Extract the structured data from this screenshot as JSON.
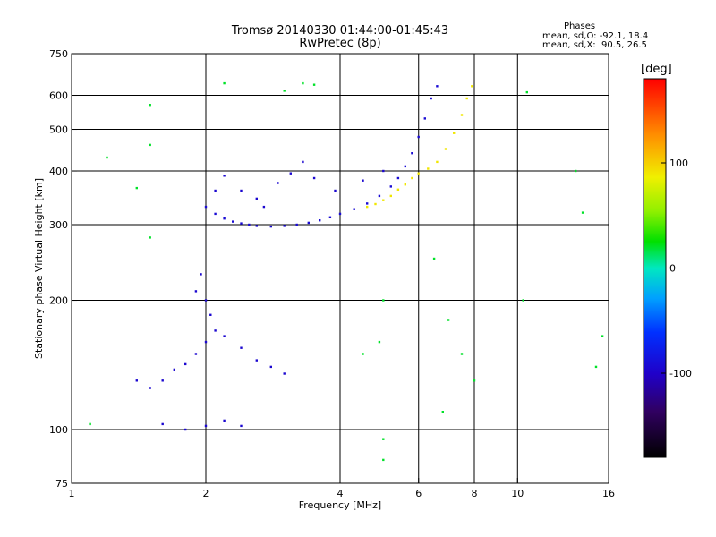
{
  "chart_data": {
    "type": "scatter",
    "title": "Tromsø 20140330 01:44:00-01:45:43",
    "subtitle": "RwPretec (8p)",
    "xlabel": "Frequency [MHz]",
    "ylabel": "Stationary phase Virtual Height [km]",
    "x_scale": "log2",
    "y_scale": "log",
    "xlim": [
      1,
      16
    ],
    "ylim": [
      75,
      750
    ],
    "x_ticks": [
      "1",
      "2",
      "4",
      "6",
      "8",
      "10",
      "16"
    ],
    "x_tick_values": [
      1,
      2,
      4,
      6,
      8,
      10,
      16
    ],
    "y_ticks": [
      "750",
      "600",
      "500",
      "400",
      "300",
      "200",
      "100",
      "75"
    ],
    "y_tick_values": [
      750,
      600,
      500,
      400,
      300,
      200,
      100,
      75
    ],
    "x_gridlines": [
      2,
      4,
      6,
      8,
      10
    ],
    "y_gridlines": [
      600,
      500,
      400,
      300,
      200,
      100
    ],
    "grid": true,
    "color_variable": "Phase",
    "colorbar": {
      "label": "[deg]",
      "range": [
        -180,
        180
      ],
      "ticks": [
        "100",
        "0",
        "-100"
      ],
      "tick_values": [
        100,
        0,
        -100
      ]
    },
    "stats": {
      "header": "Phases",
      "o_mode": "mean, sd,O: -92.1, 18.4",
      "x_mode": "mean, sd,X:  90.5, 26.5"
    },
    "series": [
      {
        "feature": "F-layer o-mode trace",
        "phase_mean": -92,
        "points": [
          [
            2.0,
            330
          ],
          [
            2.1,
            318
          ],
          [
            2.2,
            310
          ],
          [
            2.3,
            305
          ],
          [
            2.4,
            302
          ],
          [
            2.5,
            300
          ],
          [
            2.6,
            298
          ],
          [
            2.8,
            297
          ],
          [
            3.0,
            298
          ],
          [
            3.2,
            300
          ],
          [
            3.4,
            303
          ],
          [
            3.6,
            307
          ],
          [
            3.8,
            312
          ],
          [
            4.0,
            318
          ],
          [
            4.3,
            326
          ],
          [
            4.6,
            336
          ],
          [
            4.9,
            350
          ],
          [
            5.2,
            368
          ],
          [
            5.4,
            385
          ],
          [
            5.6,
            410
          ],
          [
            5.8,
            440
          ],
          [
            6.0,
            480
          ],
          [
            6.2,
            530
          ],
          [
            6.4,
            590
          ],
          [
            6.6,
            630
          ]
        ]
      },
      {
        "feature": "F-layer diffuse spread",
        "phase_mean": -95,
        "points": [
          [
            2.2,
            390
          ],
          [
            2.4,
            360
          ],
          [
            2.6,
            345
          ],
          [
            2.9,
            375
          ],
          [
            3.1,
            395
          ],
          [
            3.3,
            420
          ],
          [
            3.5,
            385
          ],
          [
            2.1,
            360
          ],
          [
            2.7,
            330
          ],
          [
            3.9,
            360
          ],
          [
            4.5,
            380
          ],
          [
            5.0,
            400
          ]
        ]
      },
      {
        "feature": "F-layer x-mode trace",
        "phase_mean": 90,
        "points": [
          [
            4.6,
            330
          ],
          [
            4.8,
            335
          ],
          [
            5.0,
            342
          ],
          [
            5.2,
            350
          ],
          [
            5.4,
            362
          ],
          [
            5.6,
            372
          ],
          [
            5.8,
            385
          ],
          [
            6.0,
            395
          ],
          [
            6.3,
            405
          ],
          [
            6.6,
            420
          ],
          [
            6.9,
            450
          ],
          [
            7.2,
            490
          ],
          [
            7.5,
            540
          ],
          [
            7.7,
            590
          ],
          [
            7.9,
            630
          ]
        ]
      },
      {
        "feature": "Lower-height spread",
        "phase_mean": -95,
        "points": [
          [
            1.4,
            130
          ],
          [
            1.5,
            125
          ],
          [
            1.6,
            130
          ],
          [
            1.7,
            138
          ],
          [
            1.8,
            142
          ],
          [
            1.9,
            150
          ],
          [
            2.0,
            160
          ],
          [
            2.1,
            170
          ],
          [
            2.2,
            165
          ],
          [
            2.4,
            155
          ],
          [
            2.6,
            145
          ],
          [
            2.8,
            140
          ],
          [
            3.0,
            135
          ],
          [
            1.95,
            230
          ],
          [
            2.0,
            200
          ],
          [
            1.9,
            210
          ],
          [
            2.05,
            185
          ],
          [
            1.6,
            103
          ],
          [
            1.8,
            100
          ],
          [
            2.0,
            102
          ],
          [
            2.2,
            105
          ],
          [
            2.4,
            102
          ]
        ]
      },
      {
        "feature": "Isolated echoes",
        "phase_mean": 20,
        "points": [
          [
            3.0,
            615
          ],
          [
            3.3,
            640
          ],
          [
            3.5,
            635
          ],
          [
            1.5,
            570
          ],
          [
            1.5,
            460
          ],
          [
            1.2,
            430
          ],
          [
            1.4,
            365
          ],
          [
            2.2,
            640
          ],
          [
            5.0,
            200
          ],
          [
            5.0,
            95
          ],
          [
            5.0,
            85
          ],
          [
            6.8,
            110
          ],
          [
            7.5,
            150
          ],
          [
            8.0,
            130
          ],
          [
            10.3,
            200
          ],
          [
            10.5,
            610
          ],
          [
            13.5,
            400
          ],
          [
            14.0,
            320
          ],
          [
            15.5,
            165
          ],
          [
            15.0,
            140
          ],
          [
            1.1,
            103
          ],
          [
            1.5,
            280
          ],
          [
            4.5,
            150
          ],
          [
            4.9,
            160
          ],
          [
            6.5,
            250
          ],
          [
            7.0,
            180
          ]
        ]
      }
    ]
  }
}
